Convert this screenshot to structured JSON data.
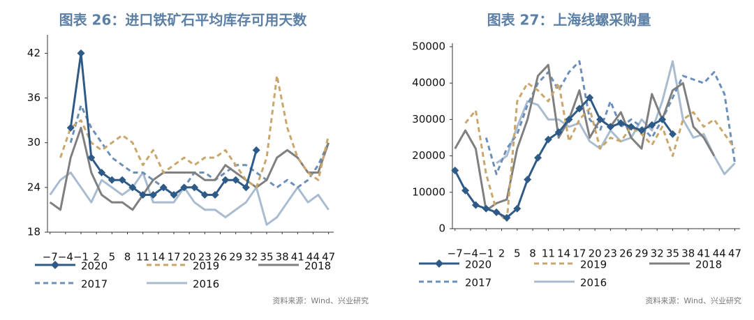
{
  "chart_data": [
    {
      "type": "line",
      "title": "图表 26：进口铁矿石平均库存可用天数",
      "source": "资料来源：Wind、兴业研究",
      "legend": "bottom",
      "grid": false,
      "x": [
        -7,
        -5,
        -3,
        -1,
        1,
        3,
        5,
        7,
        9,
        11,
        13,
        15,
        17,
        19,
        21,
        23,
        25,
        27,
        29,
        31,
        33,
        35,
        37,
        39,
        41,
        43,
        45,
        47
      ],
      "xlim": [
        -7.5,
        48
      ],
      "xticks": [
        {
          "value": -7,
          "label": "−7"
        },
        {
          "value": -4,
          "label": "−4"
        },
        {
          "value": -1,
          "label": "−1"
        },
        2,
        5,
        8,
        11,
        14,
        17,
        20,
        23,
        26,
        29,
        32,
        35,
        38,
        41,
        44,
        47
      ],
      "ylim": [
        18,
        44
      ],
      "yticks": [
        18,
        24,
        30,
        36,
        42
      ],
      "series": [
        {
          "name": "2020",
          "color": "#2e5a87",
          "linestyle": "solid",
          "marker": "diamond",
          "values": [
            null,
            null,
            32,
            42,
            28,
            26,
            25,
            25,
            24,
            23,
            23,
            24,
            23,
            24,
            24,
            23,
            23,
            25,
            25,
            24,
            29,
            null,
            null,
            null,
            null,
            null,
            null,
            null
          ]
        },
        {
          "name": "2019",
          "color": "#c9a66b",
          "linestyle": "dashed",
          "values": [
            null,
            28,
            32,
            33,
            30,
            29,
            30,
            31,
            30,
            27,
            29,
            26,
            27,
            28,
            27,
            28,
            28,
            29,
            27,
            25,
            24,
            28,
            39,
            32,
            28,
            26,
            25,
            31
          ]
        },
        {
          "name": "2018",
          "color": "#7f7f7f",
          "linestyle": "solid",
          "values": [
            22,
            21,
            28,
            32,
            26,
            23,
            22,
            22,
            21,
            23,
            25,
            26,
            26,
            26,
            26,
            25,
            25,
            27,
            26,
            25,
            24,
            25,
            28,
            29,
            28,
            26,
            26,
            30
          ]
        },
        {
          "name": "2017",
          "color": "#6b8fb8",
          "linestyle": "dashed",
          "values": [
            null,
            null,
            30,
            35,
            32,
            30,
            28,
            27,
            26,
            26,
            25,
            24,
            23,
            24,
            26,
            26,
            25,
            26,
            27,
            27,
            26,
            25,
            24,
            25,
            24,
            25,
            27,
            30
          ]
        },
        {
          "name": "2016",
          "color": "#a9bccf",
          "linestyle": "solid",
          "values": [
            23,
            25,
            26,
            24,
            22,
            25,
            24,
            23,
            24,
            26,
            22,
            22,
            22,
            24,
            22,
            21,
            21,
            20,
            21,
            22,
            24,
            19,
            20,
            22,
            24,
            22,
            23,
            21
          ]
        }
      ]
    },
    {
      "type": "line",
      "title": "图表 27：上海线螺采购量",
      "source": "资料来源：Wind、兴业研究",
      "legend": "bottom",
      "grid": false,
      "x": [
        -7,
        -5,
        -3,
        -1,
        1,
        3,
        5,
        7,
        9,
        11,
        13,
        15,
        17,
        19,
        21,
        23,
        25,
        27,
        29,
        31,
        33,
        35,
        37,
        39,
        41,
        43,
        45,
        47
      ],
      "xlim": [
        -7.5,
        48
      ],
      "xticks": [
        {
          "value": -7,
          "label": "−7"
        },
        {
          "value": -4,
          "label": "−4"
        },
        {
          "value": -1,
          "label": "−1"
        },
        2,
        5,
        8,
        11,
        14,
        17,
        20,
        23,
        26,
        29,
        32,
        35,
        38,
        41,
        44,
        47
      ],
      "ylim": [
        0,
        50000
      ],
      "yticks": [
        0,
        10000,
        20000,
        30000,
        40000,
        50000
      ],
      "series": [
        {
          "name": "2020",
          "color": "#2e5a87",
          "linestyle": "solid",
          "marker": "diamond",
          "values": [
            16000,
            10500,
            6500,
            5500,
            4500,
            3000,
            5500,
            13500,
            19500,
            24500,
            26500,
            30000,
            33000,
            36000,
            30000,
            28000,
            29000,
            28000,
            27000,
            28500,
            30000,
            26000,
            null,
            null,
            null,
            null,
            null,
            null
          ]
        },
        {
          "name": "2019",
          "color": "#c9a66b",
          "linestyle": "dashed",
          "values": [
            null,
            29000,
            32500,
            15000,
            5000,
            2000,
            35000,
            40000,
            38000,
            35000,
            40000,
            24000,
            30000,
            33000,
            22000,
            25000,
            24000,
            28000,
            26000,
            23000,
            28000,
            20000,
            30000,
            32000,
            28000,
            30000,
            26000,
            22000
          ]
        },
        {
          "name": "2018",
          "color": "#7f7f7f",
          "linestyle": "solid",
          "values": [
            22000,
            27000,
            22000,
            5000,
            7000,
            8000,
            22000,
            30000,
            42000,
            45000,
            25000,
            30000,
            38000,
            25000,
            30000,
            28000,
            32000,
            25000,
            22000,
            37000,
            30000,
            38000,
            40000,
            28000,
            25000,
            20000,
            null,
            null
          ]
        },
        {
          "name": "2017",
          "color": "#6b8fb8",
          "linestyle": "dashed",
          "values": [
            null,
            null,
            null,
            25000,
            15000,
            22000,
            26000,
            34000,
            40000,
            43000,
            38000,
            43000,
            46000,
            30000,
            27000,
            35000,
            28000,
            30000,
            28000,
            25000,
            30000,
            36000,
            42000,
            41000,
            40000,
            43000,
            37000,
            18000
          ]
        },
        {
          "name": "2016",
          "color": "#a9bccf",
          "linestyle": "solid",
          "values": [
            null,
            null,
            null,
            null,
            18000,
            20000,
            28000,
            35000,
            34000,
            30000,
            30000,
            28000,
            29000,
            24000,
            22000,
            27000,
            24000,
            25000,
            30000,
            27000,
            35000,
            46000,
            30000,
            25000,
            26000,
            20000,
            15000,
            18000
          ]
        }
      ]
    }
  ]
}
